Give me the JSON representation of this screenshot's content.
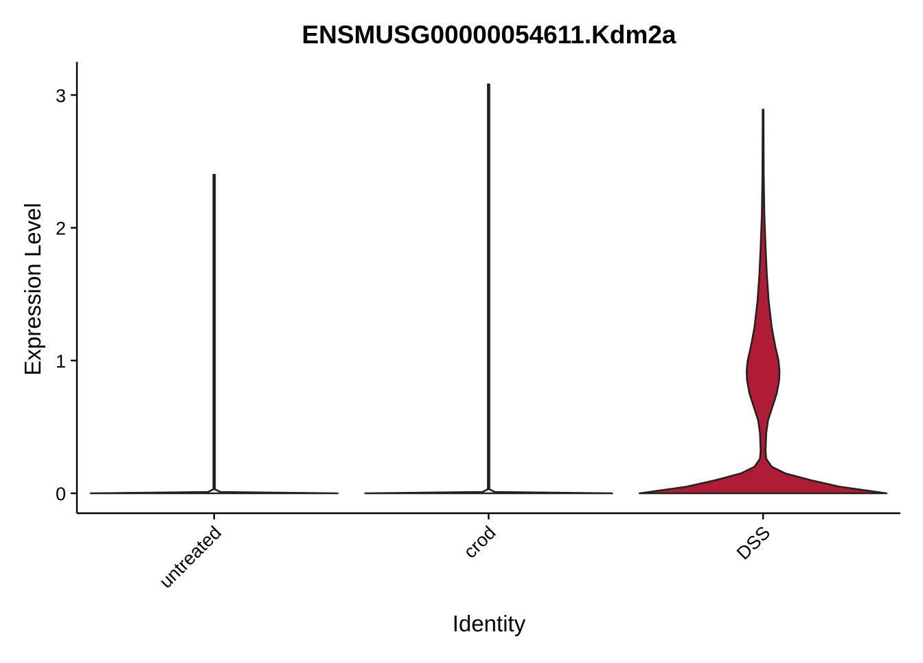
{
  "chart_data": {
    "type": "violin",
    "title": "ENSMUSG00000054611.Kdm2a",
    "xlabel": "Identity",
    "ylabel": "Expression Level",
    "ylim": [
      -0.15,
      3.25
    ],
    "yticks": [
      "0",
      "1",
      "2",
      "3"
    ],
    "yticks_values": [
      0,
      1,
      2,
      3
    ],
    "categories": [
      "untreated",
      "crod",
      "DSS"
    ],
    "grid": false,
    "legend": "none",
    "series": [
      {
        "category": "untreated",
        "fill": "#ffffff",
        "max": 2.4,
        "density": [
          [
            0,
            1.0
          ],
          [
            0.003,
            0.7
          ],
          [
            0.01,
            0.05
          ],
          [
            0.03,
            0.006
          ],
          [
            0.9,
            0.006
          ],
          [
            1.4,
            0.006
          ],
          [
            2.4,
            0.006
          ]
        ]
      },
      {
        "category": "crod",
        "fill": "#ffffff",
        "max": 3.08,
        "density": [
          [
            0,
            1.0
          ],
          [
            0.003,
            0.7
          ],
          [
            0.01,
            0.05
          ],
          [
            0.03,
            0.006
          ],
          [
            1.3,
            0.006
          ],
          [
            3.08,
            0.006
          ]
        ]
      },
      {
        "category": "DSS",
        "fill": "#b01c35",
        "max": 2.89,
        "density": [
          [
            0,
            1.0
          ],
          [
            0.05,
            0.62
          ],
          [
            0.1,
            0.38
          ],
          [
            0.15,
            0.18
          ],
          [
            0.2,
            0.07
          ],
          [
            0.26,
            0.025
          ],
          [
            0.32,
            0.02
          ],
          [
            0.45,
            0.025
          ],
          [
            0.55,
            0.04
          ],
          [
            0.65,
            0.075
          ],
          [
            0.75,
            0.11
          ],
          [
            0.85,
            0.13
          ],
          [
            0.92,
            0.133
          ],
          [
            1.0,
            0.125
          ],
          [
            1.1,
            0.1
          ],
          [
            1.25,
            0.07
          ],
          [
            1.45,
            0.045
          ],
          [
            1.65,
            0.03
          ],
          [
            1.85,
            0.02
          ],
          [
            2.1,
            0.01
          ],
          [
            2.4,
            0.005
          ],
          [
            2.89,
            0.003
          ]
        ]
      }
    ]
  }
}
